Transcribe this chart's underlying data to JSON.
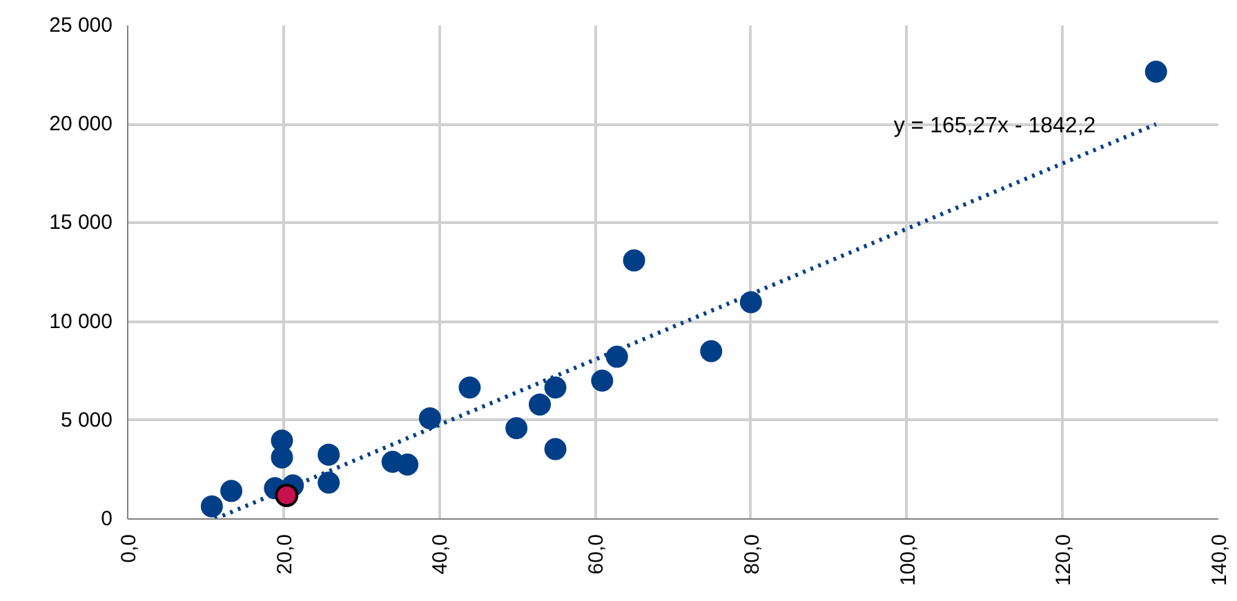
{
  "chart_data": {
    "type": "scatter",
    "marker": "circle",
    "grid": true,
    "xlim": [
      0,
      140
    ],
    "ylim": [
      0,
      25000
    ],
    "xticks": [
      {
        "value": 0,
        "label": "0,0"
      },
      {
        "value": 20,
        "label": "20,0"
      },
      {
        "value": 40,
        "label": "40,0"
      },
      {
        "value": 60,
        "label": "60,0"
      },
      {
        "value": 80,
        "label": "80,0"
      },
      {
        "value": 100,
        "label": "100,0"
      },
      {
        "value": 120,
        "label": "120,0"
      },
      {
        "value": 140,
        "label": "140,0"
      }
    ],
    "yticks": [
      0,
      {
        "value": 5000,
        "label": "5 000"
      },
      {
        "value": 10000,
        "label": "10 000"
      },
      {
        "value": 15000,
        "label": "15 000"
      },
      {
        "value": 20000,
        "label": "20 000"
      },
      {
        "value": 25000,
        "label": "25 000"
      }
    ],
    "series": [
      {
        "color": "#003f87",
        "x": [
          10.8,
          13.3,
          19.8,
          19.8,
          18.9,
          21.2,
          25.8,
          25.8,
          34.0,
          35.9,
          38.8,
          43.9,
          49.9,
          52.9,
          54.9,
          54.9,
          60.9,
          62.8,
          65.0,
          74.9,
          80.0,
          132.0
        ],
        "values": [
          640,
          1420,
          3970,
          3120,
          1560,
          1700,
          3260,
          1840,
          2900,
          2760,
          5100,
          6660,
          4600,
          5800,
          6660,
          3540,
          7010,
          8220,
          13100,
          8500,
          10980,
          22660
        ]
      },
      {
        "color": "#c8104e",
        "x": [
          20.4
        ],
        "values": [
          1200
        ]
      },
      {
        "type": "line",
        "marker": "none",
        "line_style": "dotted",
        "color": "#003f87",
        "x": [
          11.2,
          132.0
        ],
        "values": [
          0,
          20000
        ]
      }
    ],
    "annotations": [
      "y = 165,27x - 1842,2"
    ]
  }
}
